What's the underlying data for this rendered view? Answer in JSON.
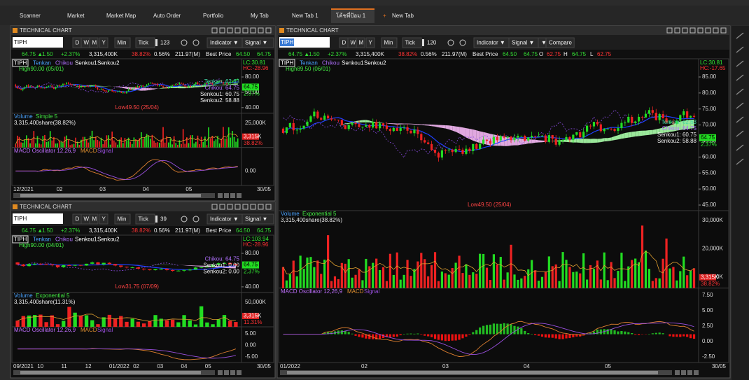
{
  "tabs": [
    "Scanner",
    "Market",
    "Market Map",
    "Auto Order",
    "Portfolio",
    "My Tab",
    "New Tab 1",
    "โค้ชพี่ป้อม 1",
    "New Tab"
  ],
  "panels": [
    {
      "title": "TECHNICAL CHART",
      "symbol": "TIPH",
      "periods": [
        "D",
        "W",
        "M",
        "Y",
        "Min",
        "Tick"
      ],
      "count": "123",
      "buttons": [
        "Indicator ▼",
        "Signal ▼"
      ],
      "quote": [
        "64.75 ▲",
        "1.50",
        "+2.37%",
        "3,315,400K",
        "38.82%",
        "0.56%",
        "211.97(M)",
        "Best Price",
        "64.50",
        "64.75"
      ],
      "price_legend": [
        "TIPH",
        "Tenkan",
        "Chikou",
        "Senkou1",
        "Senkou2"
      ],
      "high_label": "High90.00 (05/01)",
      "low_label": "Low49.50 (25/04)",
      "lc": "LC:30.81",
      "hc": "HC:-28.96",
      "price_ticks": [
        "80.00",
        "50.00",
        "40.00"
      ],
      "price_tag": "64.75",
      "change_tag": "2.37%",
      "side_labels": [
        "Tenkan: 62.63",
        "Chikou: 64.75",
        "Senkou1: 60.75",
        "Senkou2: 58.88"
      ],
      "volume_label": "Volume",
      "volume_type": "Simple 5",
      "volume_share": "3,315,400share(38.82%)",
      "volume_ticks": [
        "25,000K"
      ],
      "volume_tags": [
        "3,315K",
        "38.82%"
      ],
      "macd_label": "MACD Oscillator 12,26,9",
      "macd_lines": [
        "MACD",
        "Signal"
      ],
      "macd_ticks": [
        "0.00"
      ],
      "x_labels": [
        "12/2021",
        "02",
        "03",
        "04",
        "05",
        "30/05"
      ]
    },
    {
      "title": "TECHNICAL CHART",
      "symbol": "TIPH",
      "periods": [
        "D",
        "W",
        "M",
        "Y",
        "Min",
        "Tick"
      ],
      "count": "39",
      "buttons": [
        "Indicator ▼",
        "Signal ▼"
      ],
      "quote": [
        "64.75 ▲",
        "1.50",
        "+2.37%",
        "3,315,400K",
        "38.82%",
        "0.56%",
        "211.97(M)",
        "Best Price",
        "64.50",
        "64.75"
      ],
      "price_legend": [
        "TIPH",
        "Tenkan",
        "Chikou",
        "Senkou1",
        "Senkou2"
      ],
      "high_label": "High90.00 (04/01)",
      "low_label": "Low31.75 (07/09)",
      "lc": "LC:103.94",
      "hc": "HC:-28.96",
      "price_ticks": [
        "80.00",
        "40.00"
      ],
      "price_tag": "64.75",
      "change_tag": "2.37%",
      "side_labels": [
        "Chikou: 64.75",
        "Senkou1: 0.00",
        "Senkou2: 0.00"
      ],
      "volume_label": "Volume",
      "volume_type": "Exponential 5",
      "volume_share": "3,315,400share(11.31%)",
      "volume_ticks": [
        "50,000K"
      ],
      "volume_tags": [
        "3,315K",
        "11.31%"
      ],
      "macd_label": "MACD Oscillator 12,26,9",
      "macd_lines": [
        "MACD",
        "Signal"
      ],
      "macd_ticks": [
        "5.00",
        "0.00",
        "-5.00"
      ],
      "x_labels": [
        "09/2021",
        "10",
        "11",
        "12",
        "01/2022",
        "02",
        "03",
        "04",
        "05",
        "30/05"
      ]
    },
    {
      "title": "TECHNICAL CHART",
      "symbol": "TIPH",
      "periods": [
        "D",
        "W",
        "M",
        "Y",
        "Min",
        "Tick"
      ],
      "count": "120",
      "buttons": [
        "Indicator ▼",
        "Signal ▼",
        "▼",
        "Compare"
      ],
      "quote": [
        "64.75 ▲",
        "1.50",
        "+2.37%",
        "3,315,400K",
        "38.82%",
        "0.56%",
        "211.97(M)",
        "Best Price",
        "64.50",
        "64.75",
        "O",
        "62.75",
        "H",
        "64.75",
        "L",
        "62.75"
      ],
      "price_legend": [
        "TIPH",
        "Tenkan",
        "Chikou",
        "Senkou1",
        "Senkou2"
      ],
      "high_label": "High89.50 (06/01)",
      "low_label": "Low49.50 (25/04)",
      "lc": "LC:30.81",
      "hc": "HC:-17.65",
      "price_ticks": [
        "85.00",
        "80.00",
        "75.00",
        "70.00",
        "65.00",
        "60.00",
        "55.00",
        "50.00",
        "45.00"
      ],
      "price_tag": "64.75",
      "change_tag": "2.37%",
      "side_labels": [
        "Tenkan: 62.63",
        "Chikou: 64.75",
        "Senkou1: 60.75",
        "Senkou2: 58.88"
      ],
      "volume_label": "Volume",
      "volume_type": "Exponential 5",
      "volume_share": "3,315,400share(38.82%)",
      "volume_ticks": [
        "30,000K",
        "20,000K",
        "10,000K"
      ],
      "volume_tags": [
        "3,315K",
        "38.82%"
      ],
      "macd_label": "MACD Oscillator 12,26,9",
      "macd_lines": [
        "MACD",
        "Signal"
      ],
      "macd_ticks": [
        "7.50",
        "5.00",
        "2.50",
        "0.00",
        "-2.50"
      ],
      "x_labels": [
        "01/2022",
        "02",
        "03",
        "04",
        "05",
        "30/05"
      ]
    }
  ]
}
